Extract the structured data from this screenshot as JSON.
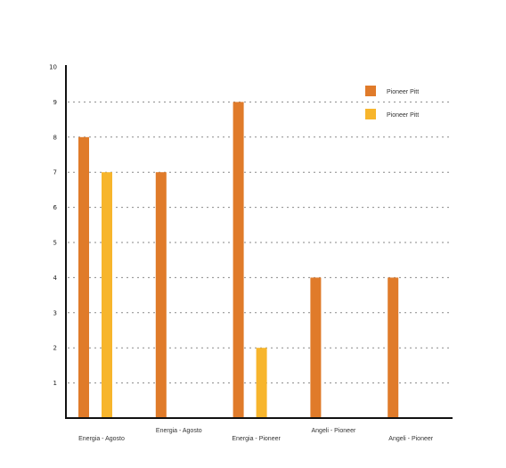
{
  "chart_data": {
    "type": "bar",
    "categories": [
      "Energia - Agosto",
      "Energia - Agosto",
      "Energia - Pioneer",
      "Angeli - Pioneer",
      "Angeli - Pioneer"
    ],
    "series": [
      {
        "name": "Pioneer Pitt",
        "color": "#e07b2a",
        "values": [
          8,
          7,
          9,
          4,
          4
        ]
      },
      {
        "name": "Pioneer Pitt",
        "color": "#f7b52c",
        "values": [
          7,
          null,
          2,
          null,
          null
        ]
      }
    ],
    "ylim": [
      0,
      10
    ],
    "yticks": [
      1,
      2,
      3,
      4,
      5,
      6,
      7,
      8,
      9,
      10
    ],
    "grid": true,
    "legend_position": "top-right",
    "title": "",
    "xlabel": "",
    "ylabel": ""
  }
}
